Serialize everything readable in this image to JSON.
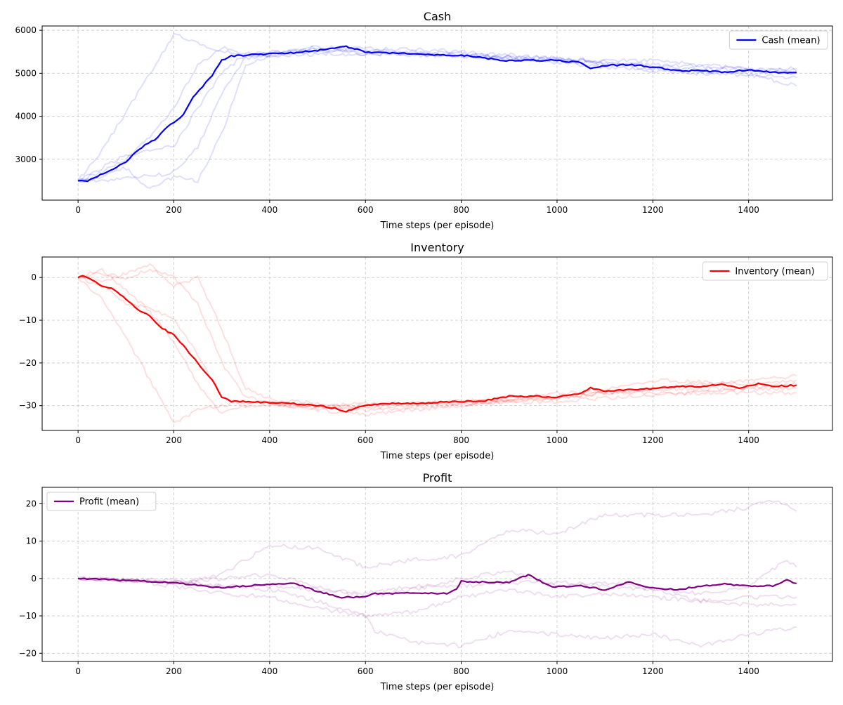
{
  "chart_data": [
    {
      "type": "line",
      "title": "Cash",
      "xlabel": "Time steps (per episode)",
      "ylabel": "",
      "xlim": [
        -75,
        1575
      ],
      "ylim": [
        2050,
        6100
      ],
      "x_ticks": [
        0,
        200,
        400,
        600,
        800,
        1000,
        1200,
        1400
      ],
      "y_ticks": [
        3000,
        4000,
        5000,
        6000
      ],
      "grid": true,
      "legend": {
        "location": "top-right",
        "entries": [
          "Cash (mean)"
        ]
      },
      "colors": {
        "mean": "#0000ff",
        "runs": "#0000ff"
      },
      "mean_series": {
        "name": "Cash (mean)",
        "x": [
          0,
          20,
          40,
          60,
          80,
          100,
          120,
          140,
          160,
          180,
          200,
          220,
          240,
          260,
          280,
          300,
          320,
          350,
          400,
          450,
          500,
          530,
          560,
          600,
          650,
          700,
          750,
          800,
          850,
          900,
          950,
          1000,
          1050,
          1070,
          1100,
          1150,
          1200,
          1250,
          1300,
          1350,
          1400,
          1450,
          1500
        ],
        "values": [
          2500,
          2500,
          2600,
          2700,
          2800,
          2950,
          3150,
          3350,
          3450,
          3700,
          3850,
          4050,
          4450,
          4700,
          4950,
          5300,
          5400,
          5420,
          5450,
          5480,
          5530,
          5580,
          5620,
          5500,
          5470,
          5460,
          5430,
          5420,
          5350,
          5290,
          5300,
          5300,
          5250,
          5120,
          5180,
          5200,
          5150,
          5060,
          5060,
          5030,
          5080,
          5020,
          5020
        ]
      },
      "run_series": [
        {
          "name": "run 1",
          "x": [
            0,
            50,
            100,
            150,
            200,
            250,
            300,
            350,
            400,
            500,
            600,
            800,
            1000,
            1200,
            1400,
            1500
          ],
          "values": [
            2500,
            3200,
            4100,
            5000,
            5900,
            5700,
            5500,
            5420,
            5450,
            5550,
            5500,
            5400,
            5300,
            5150,
            5050,
            5000
          ]
        },
        {
          "name": "run 2",
          "x": [
            0,
            50,
            100,
            150,
            200,
            250,
            300,
            350,
            400,
            500,
            600,
            800,
            1000,
            1200,
            1400,
            1500
          ],
          "values": [
            2500,
            2700,
            3000,
            3500,
            4200,
            5200,
            5600,
            5400,
            5400,
            5500,
            5550,
            5450,
            5250,
            5050,
            4950,
            4900
          ]
        },
        {
          "name": "run 3",
          "x": [
            0,
            50,
            100,
            150,
            200,
            250,
            300,
            350,
            400,
            500,
            600,
            800,
            1000,
            1200,
            1400,
            1500
          ],
          "values": [
            2500,
            2500,
            2600,
            2600,
            2700,
            3300,
            4500,
            5350,
            5450,
            5600,
            5600,
            5500,
            5350,
            5200,
            5100,
            5100
          ]
        },
        {
          "name": "run 4",
          "x": [
            0,
            50,
            100,
            150,
            200,
            250,
            300,
            350,
            400,
            500,
            600,
            800,
            1000,
            1200,
            1400,
            1500
          ],
          "values": [
            2500,
            2600,
            2800,
            2300,
            2600,
            2500,
            3600,
            5200,
            5400,
            5450,
            5450,
            5400,
            5350,
            5100,
            5000,
            4700
          ]
        },
        {
          "name": "run 5",
          "x": [
            0,
            50,
            100,
            150,
            200,
            250,
            300,
            350,
            400,
            500,
            600,
            800,
            1000,
            1200,
            1400,
            1500
          ],
          "values": [
            2500,
            2800,
            3100,
            3200,
            3300,
            4200,
            5000,
            5450,
            5500,
            5600,
            5450,
            5450,
            5300,
            5300,
            5100,
            5050
          ]
        }
      ]
    },
    {
      "type": "line",
      "title": "Inventory",
      "xlabel": "Time steps (per episode)",
      "ylabel": "",
      "xlim": [
        -75,
        1575
      ],
      "ylim": [
        -35.8,
        4.8
      ],
      "x_ticks": [
        0,
        200,
        400,
        600,
        800,
        1000,
        1200,
        1400
      ],
      "y_ticks": [
        -30,
        -20,
        -10,
        0
      ],
      "grid": true,
      "legend": {
        "location": "top-right",
        "entries": [
          "Inventory (mean)"
        ]
      },
      "colors": {
        "mean": "#ff0000",
        "runs": "#ff0000"
      },
      "mean_series": {
        "name": "Inventory (mean)",
        "x": [
          0,
          10,
          30,
          50,
          70,
          100,
          130,
          150,
          170,
          200,
          220,
          250,
          280,
          300,
          320,
          350,
          400,
          450,
          500,
          530,
          560,
          600,
          650,
          700,
          750,
          800,
          850,
          900,
          950,
          1000,
          1050,
          1070,
          1100,
          1150,
          1200,
          1250,
          1300,
          1350,
          1380,
          1420,
          1450,
          1500
        ],
        "values": [
          0,
          0.5,
          -0.5,
          -2,
          -2.5,
          -5,
          -8,
          -9,
          -11.5,
          -13.5,
          -16,
          -20,
          -24,
          -28,
          -29,
          -29,
          -29.3,
          -29.5,
          -30,
          -30.5,
          -31.3,
          -30,
          -29.5,
          -29.5,
          -29.2,
          -29,
          -28.8,
          -27.8,
          -27.8,
          -28,
          -27,
          -25.8,
          -26.7,
          -26.2,
          -26,
          -25.5,
          -25.5,
          -25,
          -26,
          -24.8,
          -25.5,
          -25.2
        ]
      },
      "run_series": [
        {
          "name": "run 1",
          "x": [
            0,
            50,
            100,
            150,
            200,
            250,
            300,
            350,
            400,
            500,
            600,
            800,
            1000,
            1200,
            1400,
            1500
          ],
          "values": [
            0,
            -5,
            -14,
            -24,
            -34,
            -31,
            -30,
            -29,
            -29.5,
            -30.5,
            -30,
            -29,
            -28,
            -26,
            -24,
            -23
          ]
        },
        {
          "name": "run 2",
          "x": [
            0,
            50,
            100,
            150,
            200,
            250,
            300,
            350,
            400,
            500,
            600,
            800,
            1000,
            1200,
            1400,
            1500
          ],
          "values": [
            0,
            2,
            -3,
            -8,
            -15,
            -25,
            -32,
            -30,
            -29,
            -30,
            -31,
            -30,
            -28,
            -26,
            -26,
            -25
          ]
        },
        {
          "name": "run 3",
          "x": [
            0,
            50,
            100,
            150,
            200,
            250,
            300,
            350,
            400,
            500,
            600,
            800,
            1000,
            1200,
            1400,
            1500
          ],
          "values": [
            0,
            1,
            0,
            2,
            0,
            -6,
            -20,
            -28,
            -29.5,
            -31,
            -32,
            -30,
            -27,
            -27,
            -27,
            -27
          ]
        },
        {
          "name": "run 4",
          "x": [
            0,
            50,
            100,
            150,
            200,
            250,
            300,
            350,
            400,
            500,
            600,
            800,
            1000,
            1200,
            1400,
            1500
          ],
          "values": [
            0,
            -1,
            1,
            3,
            -2,
            0,
            -12,
            -26,
            -28.5,
            -29.5,
            -30.5,
            -29,
            -28.5,
            -24,
            -25,
            -24
          ]
        },
        {
          "name": "run 5",
          "x": [
            0,
            50,
            100,
            150,
            200,
            250,
            300,
            350,
            400,
            500,
            600,
            800,
            1000,
            1200,
            1400,
            1500
          ],
          "values": [
            0,
            -2,
            -6,
            -7,
            -10,
            -18,
            -28,
            -30,
            -30,
            -30,
            -29.5,
            -29.5,
            -29,
            -27.5,
            -26,
            -26
          ]
        }
      ]
    },
    {
      "type": "line",
      "title": "Profit",
      "xlabel": "Time steps (per episode)",
      "ylabel": "",
      "xlim": [
        -75,
        1575
      ],
      "ylim": [
        -22.2,
        24.4
      ],
      "x_ticks": [
        0,
        200,
        400,
        600,
        800,
        1000,
        1200,
        1400
      ],
      "y_ticks": [
        -20,
        -10,
        0,
        10,
        20
      ],
      "grid": true,
      "legend": {
        "location": "top-left",
        "entries": [
          "Profit (mean)"
        ]
      },
      "colors": {
        "mean": "#800080",
        "runs": "#800080"
      },
      "mean_series": {
        "name": "Profit (mean)",
        "x": [
          0,
          50,
          100,
          150,
          200,
          250,
          300,
          350,
          400,
          450,
          500,
          550,
          600,
          620,
          650,
          700,
          750,
          770,
          790,
          800,
          850,
          900,
          940,
          970,
          990,
          1050,
          1100,
          1150,
          1200,
          1250,
          1300,
          1350,
          1400,
          1450,
          1480,
          1500
        ],
        "values": [
          0,
          -0.2,
          -0.5,
          -0.8,
          -1.2,
          -1.8,
          -2.5,
          -2,
          -1.5,
          -1.2,
          -3.5,
          -5,
          -5,
          -4,
          -4,
          -3.8,
          -4,
          -4,
          -3,
          -0.8,
          -1,
          -1,
          1,
          -1,
          -2.2,
          -2,
          -3,
          -1,
          -2.5,
          -3,
          -2,
          -1.5,
          -2,
          -2,
          -0.5,
          -1.3
        ]
      },
      "run_series": [
        {
          "name": "run 1",
          "x": [
            0,
            100,
            200,
            300,
            400,
            500,
            600,
            700,
            800,
            900,
            1000,
            1100,
            1200,
            1300,
            1400,
            1450,
            1500
          ],
          "values": [
            0,
            -0.5,
            -1,
            1,
            9,
            8,
            3,
            5,
            6,
            13,
            12,
            17,
            17,
            17,
            19,
            21,
            18
          ]
        },
        {
          "name": "run 2",
          "x": [
            0,
            100,
            200,
            300,
            400,
            500,
            600,
            620,
            700,
            800,
            900,
            1000,
            1100,
            1200,
            1300,
            1400,
            1500
          ],
          "values": [
            0,
            -0.5,
            -1,
            -2,
            -3,
            -6,
            -10,
            -14,
            -17,
            -18,
            -14,
            -15,
            -16,
            -15,
            -18,
            -15,
            -13
          ]
        },
        {
          "name": "run 3",
          "x": [
            0,
            100,
            200,
            300,
            400,
            500,
            600,
            700,
            800,
            900,
            1000,
            1100,
            1200,
            1300,
            1400,
            1500
          ],
          "values": [
            0,
            -0.5,
            -2,
            -4,
            -5,
            -8,
            -10,
            -9,
            -5,
            -3,
            -5,
            -4,
            -5,
            -6,
            -5,
            -5
          ]
        },
        {
          "name": "run 4",
          "x": [
            0,
            100,
            200,
            300,
            400,
            500,
            600,
            700,
            800,
            900,
            1000,
            1100,
            1200,
            1300,
            1400,
            1500
          ],
          "values": [
            0,
            -0.5,
            -1,
            0,
            1,
            -2,
            -5,
            -3,
            0,
            2,
            -2,
            -1,
            -3,
            -6,
            -7,
            -7
          ]
        },
        {
          "name": "run 5",
          "x": [
            0,
            100,
            200,
            300,
            400,
            500,
            600,
            700,
            800,
            900,
            1000,
            1100,
            1200,
            1300,
            1400,
            1480,
            1500
          ],
          "values": [
            0,
            -0.3,
            -0.5,
            -2,
            -2,
            -3,
            -4,
            -2,
            -2,
            -1,
            -1,
            -2,
            -3,
            -4,
            -2,
            5,
            3
          ]
        }
      ]
    }
  ]
}
